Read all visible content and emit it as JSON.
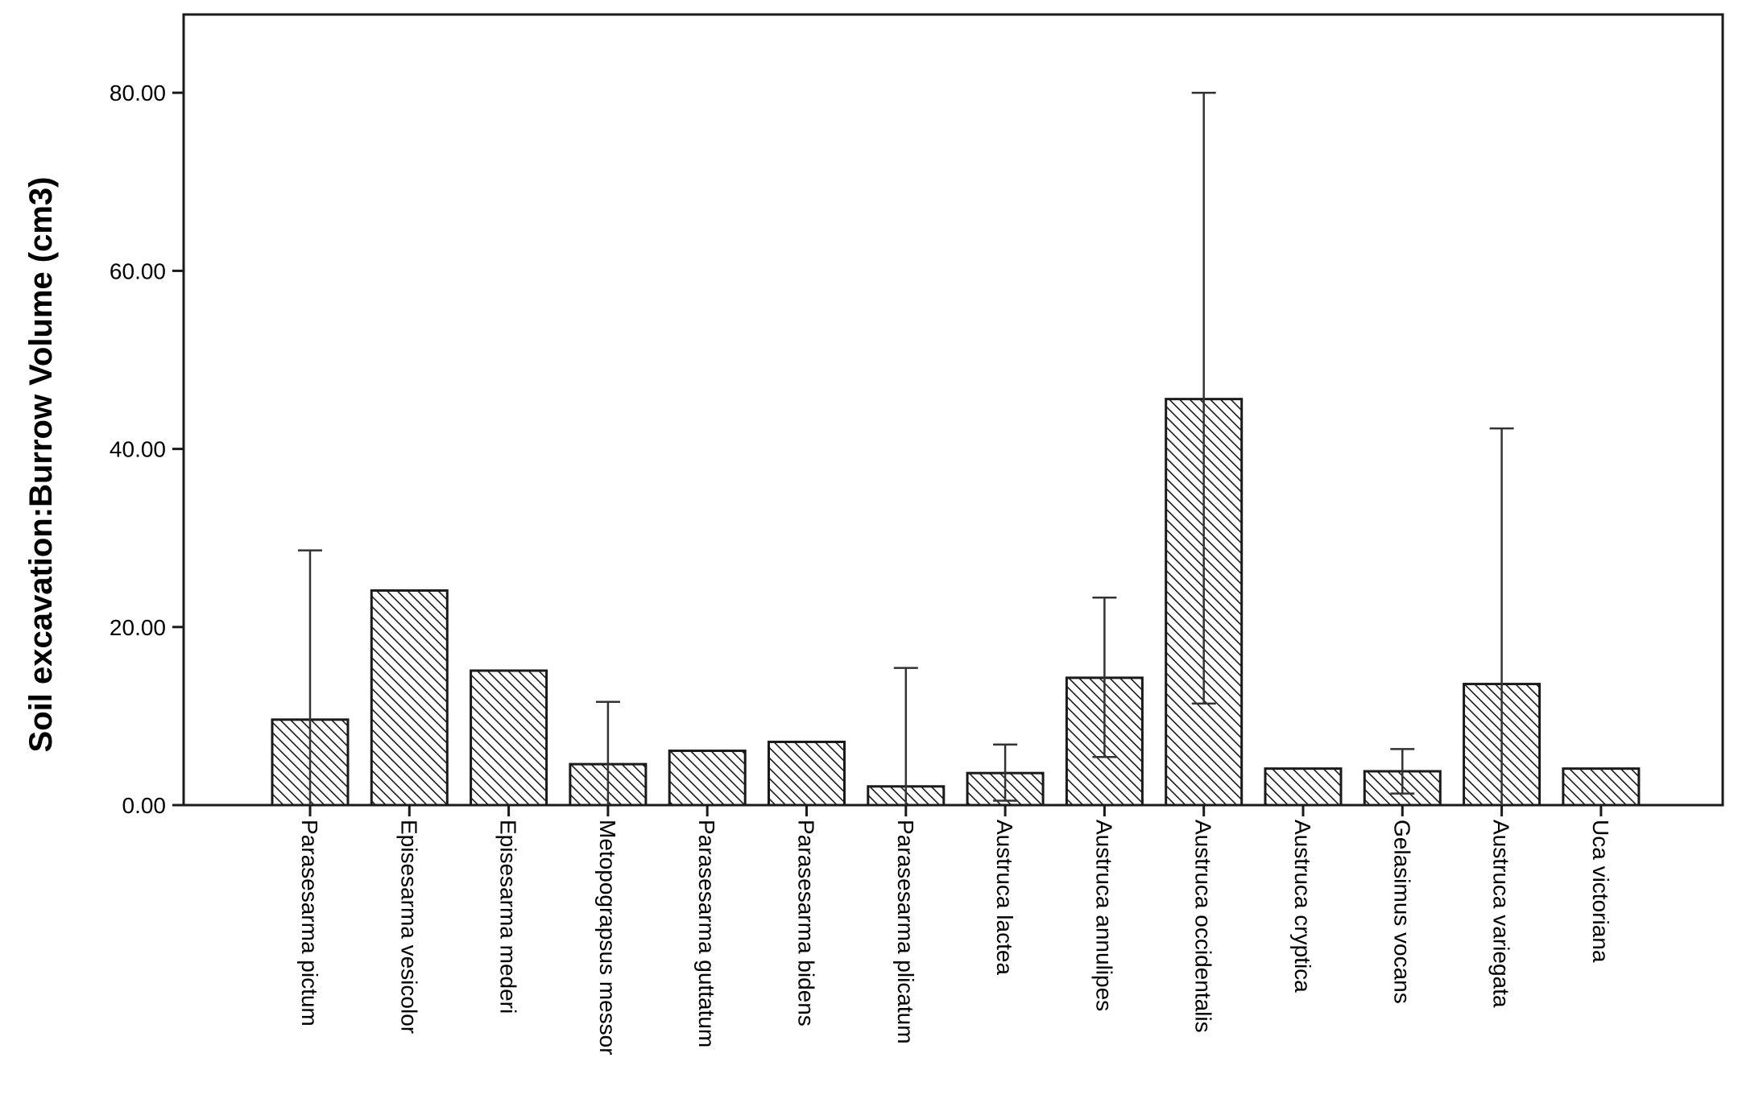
{
  "chart_data": {
    "type": "bar",
    "title": "",
    "xlabel": "",
    "ylabel": "Soil excavation:Burrow Volume (cm3)",
    "ylim": [
      0,
      88
    ],
    "yticks": [
      0,
      20,
      40,
      60,
      80
    ],
    "ytick_labels": [
      "0.00",
      "20.00",
      "40.00",
      "60.00",
      "80.00"
    ],
    "grid": false,
    "bar_fill": "diagonal hatch",
    "bar_fill_color": "#ffffff",
    "bar_stroke_color": "#1a1a1a",
    "categories": [
      "Parasesarma pictum",
      "Episesarma vesicolor",
      "Episesarma mederi",
      "Metopograpsus messor",
      "Parasesarma guttatum",
      "Parasesarma bidens",
      "Parasesarma plicatum",
      "Austruca lactea",
      "Austruca annulipes",
      "Austruca occidentalis",
      "Austruca cryptica",
      "Gelasimus vocans",
      "Austruca variegata",
      "Uca victoriana"
    ],
    "values": [
      9.6,
      24.1,
      15.1,
      4.6,
      6.1,
      7.1,
      2.1,
      3.6,
      14.3,
      45.6,
      4.1,
      3.8,
      13.6,
      4.1
    ],
    "error_bars": [
      [
        0,
        28.6
      ],
      null,
      null,
      [
        0,
        11.6
      ],
      null,
      null,
      [
        0,
        15.4
      ],
      [
        0.5,
        6.8
      ],
      [
        5.4,
        23.3
      ],
      [
        11.4,
        80.0
      ],
      null,
      [
        1.3,
        6.3
      ],
      [
        0,
        42.3
      ],
      null
    ]
  }
}
